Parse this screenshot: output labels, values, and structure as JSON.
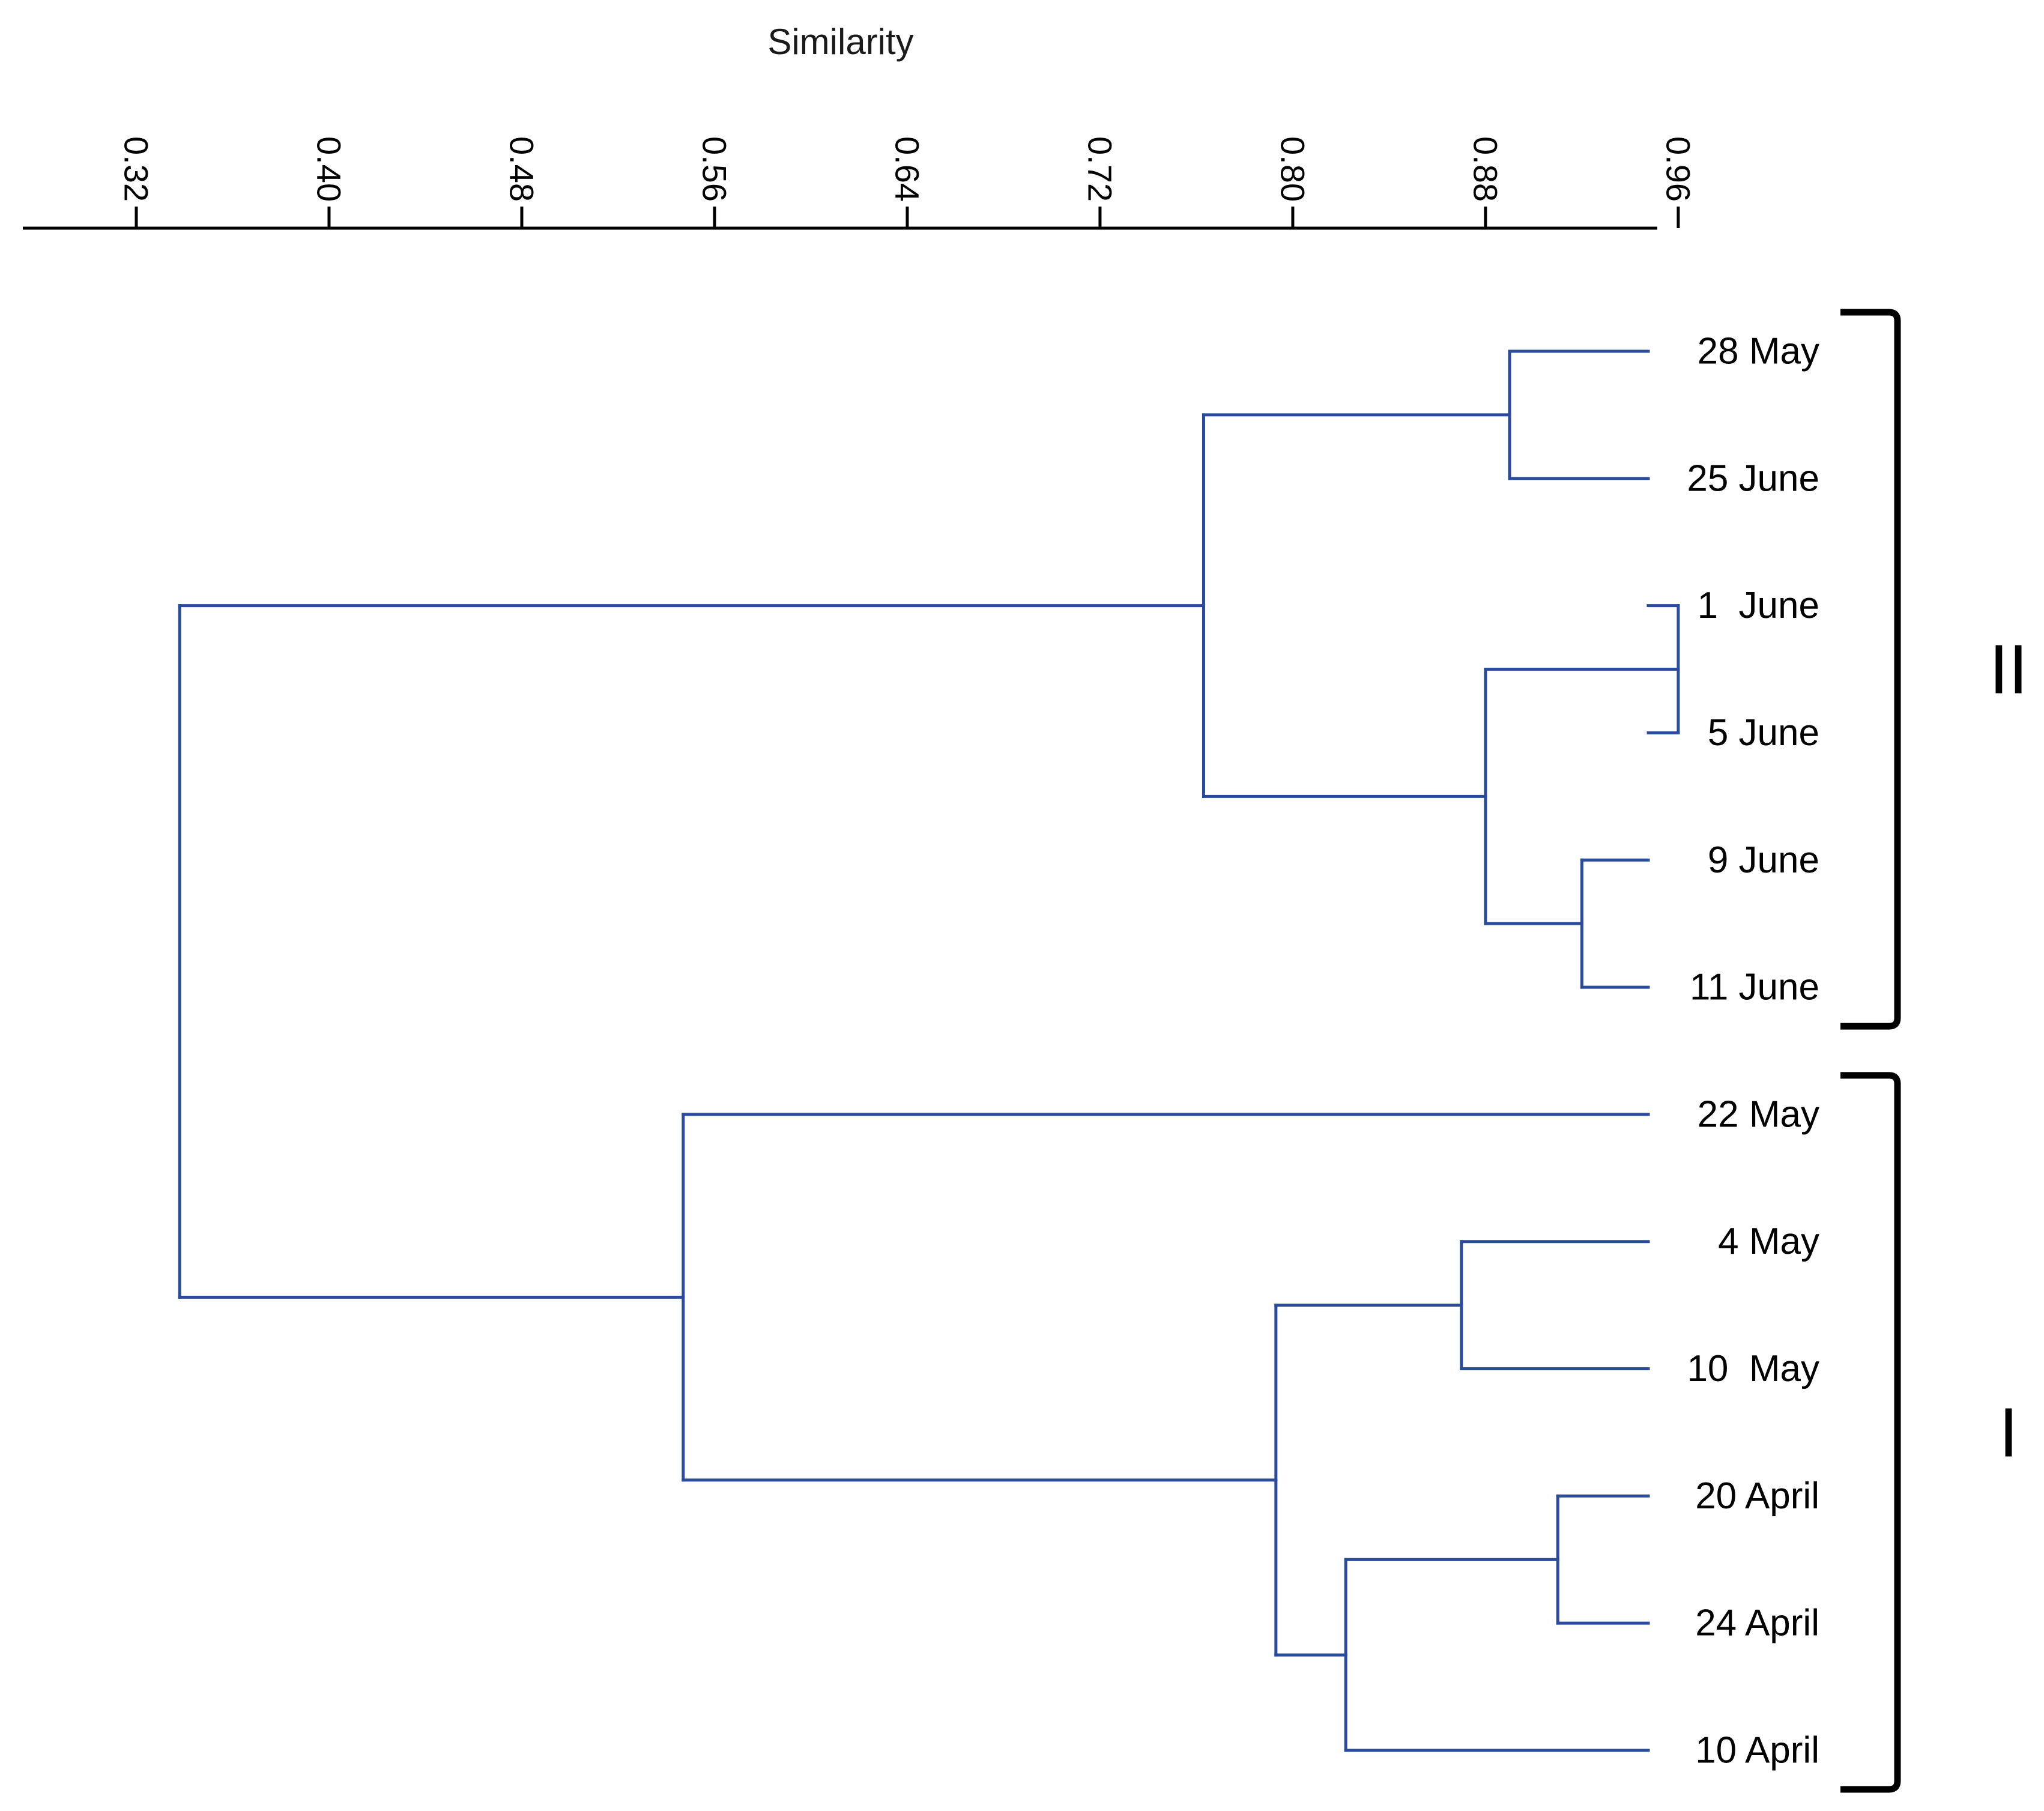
{
  "chart_data": {
    "type": "dendrogram",
    "title": "",
    "xlabel": "Similarity",
    "ylabel": "",
    "xlim": [
      0.2729,
      0.9513
    ],
    "axis_position": "top",
    "ticks": [
      {
        "value": 0.32,
        "label": "0.32"
      },
      {
        "value": 0.4,
        "label": "0.40"
      },
      {
        "value": 0.48,
        "label": "0.48"
      },
      {
        "value": 0.56,
        "label": "0.56"
      },
      {
        "value": 0.64,
        "label": "0.64"
      },
      {
        "value": 0.72,
        "label": "0.72"
      },
      {
        "value": 0.8,
        "label": "0.80"
      },
      {
        "value": 0.88,
        "label": "0.88"
      },
      {
        "value": 0.96,
        "label": "0.96"
      }
    ],
    "leaves": [
      "28 May",
      "25 June",
      "1  June",
      "5 June",
      "9 June",
      "11 June",
      "22 May",
      "4 May",
      "10  May",
      "20 April",
      "24 April",
      "10 April"
    ],
    "merges": [
      {
        "id": "m1",
        "left": "L0",
        "right": "L1",
        "similarity": 0.89
      },
      {
        "id": "m2",
        "left": "L2",
        "right": "L3",
        "similarity": 0.96
      },
      {
        "id": "m3",
        "left": "L4",
        "right": "L5",
        "similarity": 0.92
      },
      {
        "id": "m4",
        "left": "m2",
        "right": "m3",
        "similarity": 0.88
      },
      {
        "id": "m5",
        "left": "m1",
        "right": "m4",
        "similarity": 0.763
      },
      {
        "id": "m6",
        "left": "L7",
        "right": "L8",
        "similarity": 0.87
      },
      {
        "id": "m7",
        "left": "L9",
        "right": "L10",
        "similarity": 0.91
      },
      {
        "id": "m8",
        "left": "m7",
        "right": "L11",
        "similarity": 0.822
      },
      {
        "id": "m9",
        "left": "m6",
        "right": "m8",
        "similarity": 0.793
      },
      {
        "id": "m10",
        "left": "L6",
        "right": "m9",
        "similarity": 0.547
      },
      {
        "id": "m11",
        "left": "m5",
        "right": "m10",
        "similarity": 0.338
      }
    ],
    "clusters": [
      {
        "label": "II",
        "first_leaf": 0,
        "last_leaf": 5
      },
      {
        "label": "I",
        "first_leaf": 6,
        "last_leaf": 11
      }
    ],
    "colors": {
      "branch": "#2a4b9b",
      "axis": "#000000",
      "bracket": "#000000"
    }
  }
}
